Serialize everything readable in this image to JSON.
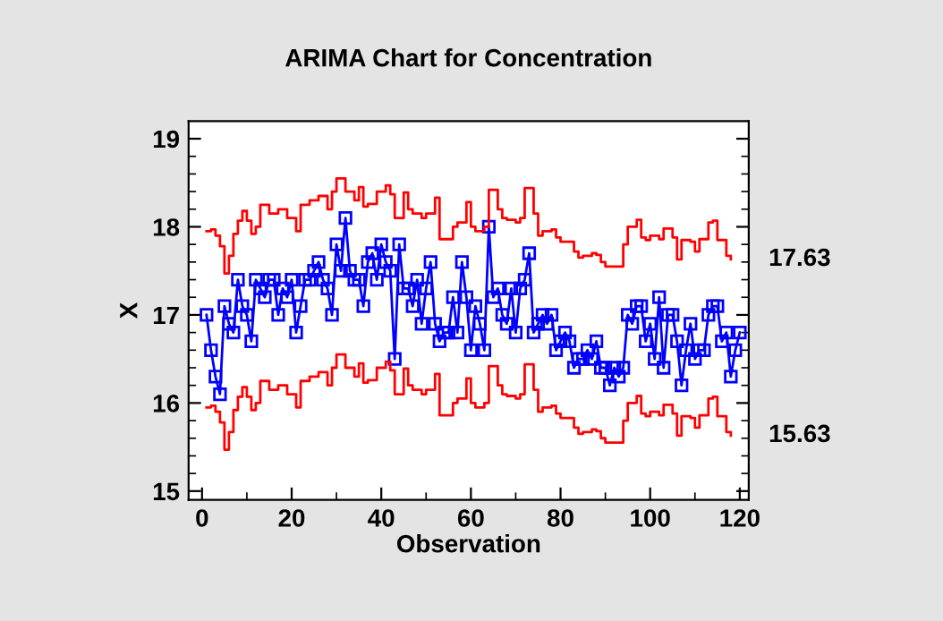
{
  "chart_data": {
    "type": "line",
    "title": "ARIMA Chart for Concentration",
    "xlabel": "Observation",
    "ylabel": "X",
    "xlim": [
      -3,
      122
    ],
    "xticks": [
      0,
      20,
      40,
      60,
      80,
      100,
      120
    ],
    "ylim": [
      14.9,
      19.2
    ],
    "yticks": [
      15,
      16,
      17,
      18,
      19
    ],
    "grid": false,
    "legend": false,
    "series": [
      {
        "marker": "square",
        "color": "#0000ff",
        "x": [
          1,
          2,
          3,
          4,
          5,
          6,
          7,
          8,
          9,
          10,
          11,
          12,
          13,
          14,
          15,
          16,
          17,
          18,
          19,
          20,
          21,
          22,
          23,
          24,
          25,
          26,
          27,
          28,
          29,
          30,
          31,
          32,
          33,
          34,
          35,
          36,
          37,
          38,
          39,
          40,
          41,
          42,
          43,
          44,
          45,
          46,
          47,
          48,
          49,
          50,
          51,
          52,
          53,
          54,
          55,
          56,
          57,
          58,
          59,
          60,
          61,
          62,
          63,
          64,
          65,
          66,
          67,
          68,
          69,
          70,
          71,
          72,
          73,
          74,
          75,
          76,
          77,
          78,
          79,
          80,
          81,
          82,
          83,
          84,
          85,
          86,
          87,
          88,
          89,
          90,
          91,
          92,
          93,
          94,
          95,
          96,
          97,
          98,
          99,
          100,
          101,
          102,
          103,
          104,
          105,
          106,
          107,
          108,
          109,
          110,
          111,
          112,
          113,
          114,
          115,
          116,
          117,
          118,
          119,
          120
        ],
        "values": [
          17.0,
          16.6,
          16.3,
          16.1,
          17.1,
          16.9,
          16.8,
          17.4,
          17.1,
          17.0,
          16.7,
          17.4,
          17.3,
          17.2,
          17.4,
          17.4,
          17.0,
          17.3,
          17.2,
          17.4,
          16.8,
          17.1,
          17.4,
          17.4,
          17.5,
          17.6,
          17.4,
          17.3,
          17.0,
          17.8,
          17.5,
          18.1,
          17.5,
          17.4,
          17.4,
          17.1,
          17.6,
          17.7,
          17.4,
          17.8,
          17.6,
          17.5,
          16.5,
          17.8,
          17.3,
          17.3,
          17.1,
          17.4,
          16.9,
          17.3,
          17.6,
          16.9,
          16.7,
          16.8,
          16.8,
          17.2,
          16.8,
          17.6,
          17.2,
          16.6,
          17.1,
          16.9,
          16.6,
          18.0,
          17.2,
          17.3,
          17.0,
          16.9,
          17.3,
          16.8,
          17.3,
          17.4,
          17.7,
          16.8,
          16.9,
          17.0,
          16.9,
          17.0,
          16.6,
          16.7,
          16.8,
          16.7,
          16.4,
          16.5,
          16.5,
          16.6,
          16.5,
          16.7,
          16.4,
          16.4,
          16.2,
          16.4,
          16.3,
          16.4,
          17.0,
          16.9,
          17.1,
          17.1,
          16.7,
          16.9,
          16.5,
          17.2,
          16.4,
          17.0,
          17.0,
          16.7,
          16.2,
          16.6,
          16.9,
          16.5,
          16.6,
          16.6,
          17.0,
          17.1,
          17.1,
          16.7,
          16.8,
          16.3,
          16.6,
          16.8
        ]
      },
      {
        "type": "step",
        "marker": "none",
        "color": "#ff0000",
        "x": [
          1,
          2,
          3,
          4,
          5,
          6,
          7,
          8,
          9,
          10,
          11,
          12,
          13,
          15,
          17,
          19,
          21,
          22,
          24,
          26,
          28,
          29,
          30,
          32,
          34,
          35,
          36,
          37,
          39,
          41,
          42,
          43,
          45,
          46,
          47,
          49,
          50,
          52,
          53,
          56,
          57,
          59,
          60,
          61,
          63,
          64,
          66,
          67,
          68,
          70,
          71,
          72,
          74,
          75,
          76,
          78,
          79,
          80,
          83,
          84,
          85,
          87,
          88,
          89,
          90,
          94,
          95,
          97,
          98,
          99,
          100,
          102,
          103,
          105,
          106,
          107,
          109,
          110,
          111,
          113,
          114,
          115,
          117,
          118
        ],
        "values": [
          17.95,
          17.97,
          17.9,
          17.78,
          17.47,
          17.67,
          17.92,
          18.07,
          18.18,
          18.07,
          17.92,
          18.0,
          18.25,
          18.15,
          18.2,
          18.1,
          17.95,
          18.25,
          18.3,
          18.35,
          18.2,
          18.4,
          18.55,
          18.4,
          18.3,
          18.45,
          18.23,
          18.26,
          18.4,
          18.47,
          18.37,
          18.1,
          18.39,
          18.2,
          18.15,
          18.1,
          18.15,
          18.33,
          17.86,
          18.0,
          18.05,
          18.28,
          18.0,
          17.95,
          18.0,
          18.42,
          18.2,
          18.1,
          18.08,
          18.05,
          18.1,
          18.44,
          18.15,
          17.9,
          17.95,
          17.97,
          17.88,
          17.83,
          17.72,
          17.65,
          17.67,
          17.7,
          17.68,
          17.6,
          17.55,
          17.8,
          18.0,
          18.08,
          17.88,
          17.85,
          17.9,
          17.86,
          17.98,
          17.88,
          17.63,
          17.85,
          17.83,
          17.72,
          17.86,
          18.05,
          18.07,
          17.85,
          17.67,
          17.63
        ]
      },
      {
        "type": "step",
        "marker": "none",
        "color": "#ff0000",
        "x": [
          1,
          2,
          3,
          4,
          5,
          6,
          7,
          8,
          9,
          10,
          11,
          12,
          13,
          15,
          17,
          19,
          21,
          22,
          24,
          26,
          28,
          29,
          30,
          32,
          34,
          35,
          36,
          37,
          39,
          41,
          42,
          43,
          45,
          46,
          47,
          49,
          50,
          52,
          53,
          56,
          57,
          59,
          60,
          61,
          63,
          64,
          66,
          67,
          68,
          70,
          71,
          72,
          74,
          75,
          76,
          78,
          79,
          80,
          83,
          84,
          85,
          87,
          88,
          89,
          90,
          94,
          95,
          97,
          98,
          99,
          100,
          102,
          103,
          105,
          106,
          107,
          109,
          110,
          111,
          113,
          114,
          115,
          117,
          118
        ],
        "values": [
          15.95,
          15.97,
          15.9,
          15.78,
          15.47,
          15.67,
          15.92,
          16.07,
          16.18,
          16.07,
          15.92,
          16.0,
          16.25,
          16.15,
          16.2,
          16.1,
          15.95,
          16.25,
          16.3,
          16.35,
          16.2,
          16.4,
          16.55,
          16.4,
          16.3,
          16.45,
          16.23,
          16.26,
          16.4,
          16.47,
          16.37,
          16.1,
          16.39,
          16.2,
          16.15,
          16.1,
          16.15,
          16.33,
          15.86,
          16.0,
          16.05,
          16.28,
          16.0,
          15.95,
          16.0,
          16.42,
          16.2,
          16.1,
          16.08,
          16.05,
          16.1,
          16.44,
          16.15,
          15.9,
          15.95,
          15.97,
          15.88,
          15.83,
          15.72,
          15.65,
          15.67,
          15.7,
          15.68,
          15.6,
          15.55,
          15.8,
          16.0,
          16.08,
          15.88,
          15.85,
          15.9,
          15.86,
          15.98,
          15.88,
          15.63,
          15.85,
          15.83,
          15.72,
          15.86,
          16.05,
          16.07,
          15.85,
          15.67,
          15.63
        ]
      }
    ],
    "annotations": [
      "17.63",
      "15.63"
    ]
  }
}
